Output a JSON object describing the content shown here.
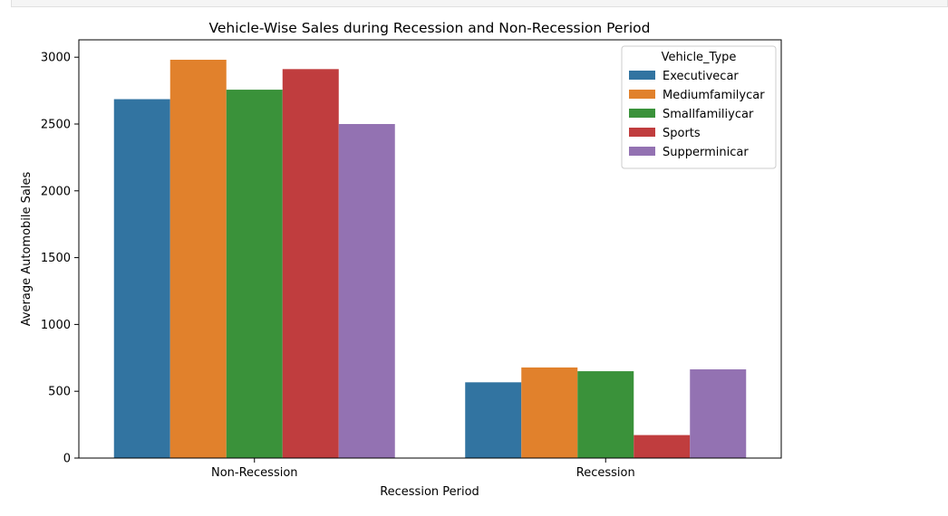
{
  "chart_data": {
    "type": "bar",
    "title": "Vehicle-Wise Sales during Recession and Non-Recession Period",
    "xlabel": "Recession Period",
    "ylabel": "Average Automobile Sales",
    "categories": [
      "Non-Recession",
      "Recession"
    ],
    "ylim": [
      0,
      3130
    ],
    "yticks": [
      0,
      500,
      1000,
      1500,
      2000,
      2500,
      3000
    ],
    "legend": {
      "title": "Vehicle_Type",
      "location": "upper right"
    },
    "grid": false,
    "series": [
      {
        "name": "Executivecar",
        "color": "#3274a1",
        "values": [
          2686,
          567
        ]
      },
      {
        "name": "Mediumfamilycar",
        "color": "#e1812c",
        "values": [
          2981,
          678
        ]
      },
      {
        "name": "Smallfamiliycar",
        "color": "#3a923a",
        "values": [
          2757,
          650
        ]
      },
      {
        "name": "Sports",
        "color": "#c03d3e",
        "values": [
          2911,
          172
        ]
      },
      {
        "name": "Supperminicar",
        "color": "#9372b2",
        "values": [
          2500,
          664
        ]
      }
    ]
  }
}
